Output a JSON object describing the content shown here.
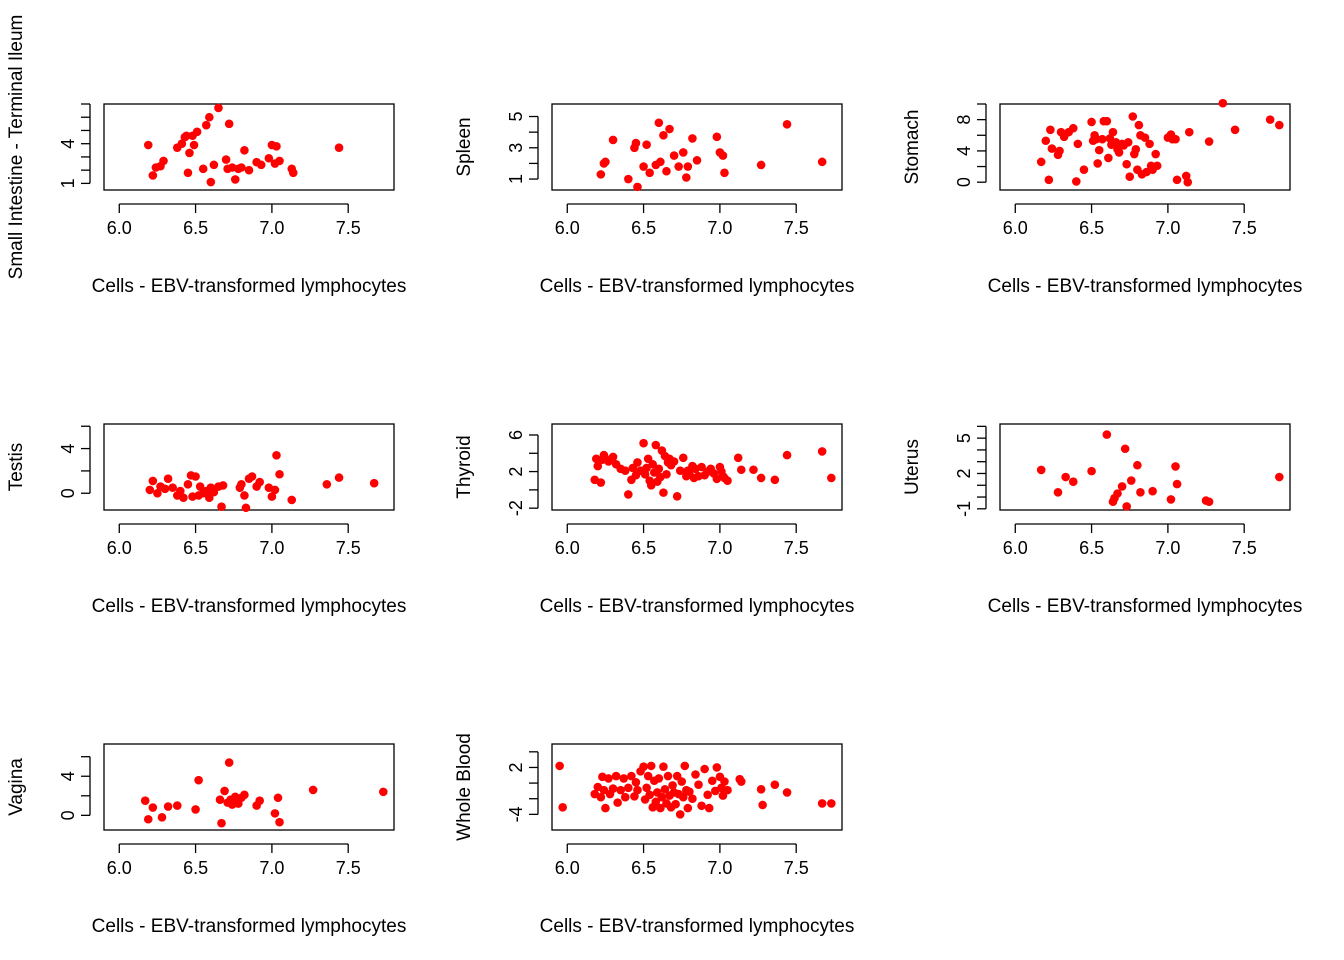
{
  "colors": {
    "points": "#ff0000",
    "axis": "#000000",
    "background": "#ffffff"
  },
  "chart_data": [
    {
      "type": "scatter",
      "xlabel": "Cells - EBV-transformed lymphocytes",
      "ylabel": "Small Intestine - Terminal Ileum",
      "xlim": [
        5.9,
        7.8
      ],
      "ylim": [
        0.5,
        7.0
      ],
      "xticks": [
        6.0,
        6.5,
        7.0,
        7.5
      ],
      "xtick_labels": [
        "6.0",
        "6.5",
        "7.0",
        "7.5"
      ],
      "yticks": [
        1,
        2,
        3,
        4,
        5,
        6,
        7
      ],
      "ytick_labels": [
        "1",
        "",
        "",
        "4",
        "",
        "",
        ""
      ],
      "x": [
        6.19,
        6.22,
        6.24,
        6.27,
        6.29,
        6.38,
        6.41,
        6.43,
        6.44,
        6.45,
        6.46,
        6.48,
        6.49,
        6.51,
        6.55,
        6.57,
        6.59,
        6.6,
        6.62,
        6.65,
        6.7,
        6.71,
        6.72,
        6.74,
        6.76,
        6.78,
        6.8,
        6.82,
        6.85,
        6.9,
        6.93,
        6.98,
        7.0,
        7.02,
        7.03,
        7.05,
        7.13,
        7.14,
        7.44
      ],
      "y": [
        3.9,
        1.6,
        2.2,
        2.3,
        2.7,
        3.7,
        4.0,
        4.5,
        4.6,
        1.8,
        3.3,
        4.6,
        3.9,
        4.9,
        2.1,
        5.4,
        6.0,
        1.1,
        2.4,
        6.7,
        2.8,
        2.1,
        5.5,
        2.2,
        1.3,
        2.1,
        2.2,
        3.5,
        2.0,
        2.6,
        2.4,
        2.9,
        3.9,
        2.5,
        3.8,
        2.7,
        2.1,
        1.8,
        3.7
      ]
    },
    {
      "type": "scatter",
      "xlabel": "Cells - EBV-transformed lymphocytes",
      "ylabel": "Spleen",
      "xlim": [
        5.9,
        7.8
      ],
      "ylim": [
        0.3,
        5.8
      ],
      "xticks": [
        6.0,
        6.5,
        7.0,
        7.5
      ],
      "xtick_labels": [
        "6.0",
        "6.5",
        "7.0",
        "7.5"
      ],
      "yticks": [
        1,
        2,
        3,
        4,
        5
      ],
      "ytick_labels": [
        "1",
        "",
        "3",
        "",
        "5"
      ],
      "x": [
        6.22,
        6.24,
        6.25,
        6.3,
        6.4,
        6.44,
        6.45,
        6.46,
        6.5,
        6.52,
        6.54,
        6.58,
        6.6,
        6.61,
        6.63,
        6.65,
        6.67,
        6.7,
        6.73,
        6.76,
        6.78,
        6.79,
        6.82,
        6.85,
        6.98,
        7.0,
        7.02,
        7.03,
        7.27,
        7.44,
        7.67
      ],
      "y": [
        1.3,
        2.0,
        2.1,
        3.5,
        1.0,
        3.0,
        3.3,
        0.5,
        1.8,
        3.2,
        1.4,
        1.9,
        4.6,
        2.1,
        3.8,
        1.5,
        4.2,
        2.5,
        1.8,
        2.7,
        1.1,
        1.8,
        3.6,
        2.2,
        3.7,
        2.7,
        2.5,
        1.4,
        1.9,
        4.5,
        2.1
      ]
    },
    {
      "type": "scatter",
      "xlabel": "Cells - EBV-transformed lymphocytes",
      "ylabel": "Stomach",
      "xlim": [
        5.9,
        7.8
      ],
      "ylim": [
        -1.0,
        10.0
      ],
      "xticks": [
        6.0,
        6.5,
        7.0,
        7.5
      ],
      "xtick_labels": [
        "6.0",
        "6.5",
        "7.0",
        "7.5"
      ],
      "yticks": [
        0,
        2,
        4,
        6,
        8,
        10
      ],
      "ytick_labels": [
        "0",
        "",
        "4",
        "",
        "8",
        ""
      ],
      "x": [
        6.17,
        6.2,
        6.22,
        6.23,
        6.24,
        6.28,
        6.29,
        6.3,
        6.32,
        6.35,
        6.38,
        6.4,
        6.41,
        6.45,
        6.5,
        6.51,
        6.52,
        6.53,
        6.54,
        6.55,
        6.57,
        6.58,
        6.6,
        6.61,
        6.62,
        6.63,
        6.64,
        6.66,
        6.67,
        6.68,
        6.7,
        6.71,
        6.73,
        6.74,
        6.75,
        6.77,
        6.78,
        6.79,
        6.8,
        6.81,
        6.82,
        6.83,
        6.85,
        6.86,
        6.88,
        6.89,
        6.9,
        6.92,
        6.93,
        7.0,
        7.02,
        7.03,
        7.05,
        7.06,
        7.12,
        7.13,
        7.14,
        7.27,
        7.36,
        7.44,
        7.67,
        7.73
      ],
      "y": [
        2.6,
        5.3,
        0.3,
        6.7,
        4.3,
        3.5,
        4.0,
        6.4,
        5.8,
        6.4,
        6.9,
        0.1,
        4.9,
        1.6,
        7.7,
        5.3,
        6.0,
        5.5,
        2.4,
        4.1,
        5.5,
        7.8,
        7.8,
        3.1,
        5.6,
        4.8,
        6.4,
        5.1,
        4.2,
        3.8,
        4.9,
        4.7,
        2.3,
        5.1,
        0.7,
        8.4,
        3.6,
        4.2,
        1.6,
        7.3,
        6.0,
        1.0,
        5.7,
        1.3,
        4.9,
        2.1,
        1.6,
        3.6,
        2.1,
        5.7,
        6.1,
        5.5,
        5.5,
        0.3,
        0.8,
        0.0,
        6.4,
        5.2,
        10.1,
        6.7,
        8.0,
        7.3
      ]
    },
    {
      "type": "scatter",
      "xlabel": "Cells - EBV-transformed lymphocytes",
      "ylabel": "Testis",
      "xlim": [
        5.9,
        7.8
      ],
      "ylim": [
        -1.5,
        6.2
      ],
      "xticks": [
        6.0,
        6.5,
        7.0,
        7.5
      ],
      "xtick_labels": [
        "6.0",
        "6.5",
        "7.0",
        "7.5"
      ],
      "yticks": [
        0,
        2,
        4,
        6
      ],
      "ytick_labels": [
        "0",
        "",
        "4",
        ""
      ],
      "x": [
        6.2,
        6.22,
        6.25,
        6.27,
        6.3,
        6.32,
        6.35,
        6.38,
        6.4,
        6.42,
        6.45,
        6.47,
        6.48,
        6.5,
        6.52,
        6.53,
        6.55,
        6.57,
        6.59,
        6.6,
        6.62,
        6.65,
        6.67,
        6.68,
        6.79,
        6.8,
        6.82,
        6.83,
        6.85,
        6.87,
        6.9,
        6.92,
        6.98,
        7.0,
        7.02,
        7.03,
        7.05,
        7.13,
        7.36,
        7.44,
        7.67
      ],
      "y": [
        0.3,
        1.1,
        0.0,
        0.6,
        0.4,
        1.3,
        0.5,
        -0.2,
        0.2,
        -0.4,
        0.8,
        1.6,
        -0.3,
        1.5,
        -0.2,
        0.6,
        0.0,
        0.2,
        -0.4,
        0.5,
        0.1,
        0.6,
        -1.2,
        0.7,
        0.5,
        0.8,
        -0.2,
        -1.3,
        1.3,
        1.5,
        0.6,
        1.0,
        0.5,
        -0.3,
        0.3,
        3.4,
        1.7,
        -0.6,
        0.8,
        1.4,
        0.9
      ]
    },
    {
      "type": "scatter",
      "xlabel": "Cells - EBV-transformed lymphocytes",
      "ylabel": "Thyroid",
      "xlim": [
        5.9,
        7.8
      ],
      "ylim": [
        -2.2,
        7.2
      ],
      "xticks": [
        6.0,
        6.5,
        7.0,
        7.5
      ],
      "xtick_labels": [
        "6.0",
        "6.5",
        "7.0",
        "7.5"
      ],
      "yticks": [
        -2,
        0,
        2,
        4,
        6
      ],
      "ytick_labels": [
        "-2",
        "",
        "2",
        "",
        "6"
      ],
      "x": [
        6.18,
        6.19,
        6.2,
        6.22,
        6.23,
        6.24,
        6.25,
        6.27,
        6.3,
        6.32,
        6.35,
        6.38,
        6.4,
        6.42,
        6.43,
        6.45,
        6.46,
        6.48,
        6.5,
        6.51,
        6.52,
        6.53,
        6.54,
        6.55,
        6.56,
        6.57,
        6.58,
        6.59,
        6.6,
        6.61,
        6.62,
        6.63,
        6.64,
        6.65,
        6.66,
        6.67,
        6.68,
        6.7,
        6.72,
        6.74,
        6.76,
        6.78,
        6.79,
        6.8,
        6.82,
        6.83,
        6.84,
        6.86,
        6.88,
        6.9,
        6.92,
        6.94,
        6.96,
        6.98,
        7.0,
        7.01,
        7.02,
        7.03,
        7.05,
        7.12,
        7.14,
        7.22,
        7.27,
        7.36,
        7.44,
        7.67,
        7.73
      ],
      "y": [
        1.1,
        3.4,
        2.6,
        0.8,
        3.3,
        3.8,
        3.4,
        3.1,
        3.6,
        2.8,
        2.3,
        2.1,
        -0.5,
        1.1,
        2.4,
        1.6,
        3.0,
        2.1,
        5.1,
        1.7,
        2.4,
        3.4,
        1.0,
        0.5,
        2.8,
        1.9,
        4.9,
        0.9,
        2.3,
        1.4,
        4.3,
        -0.3,
        3.7,
        1.7,
        3.0,
        3.4,
        2.7,
        3.1,
        -0.7,
        2.1,
        3.5,
        1.5,
        2.1,
        1.7,
        2.6,
        1.3,
        2.3,
        1.5,
        2.5,
        1.6,
        2.0,
        2.3,
        1.8,
        1.2,
        2.5,
        2.0,
        1.5,
        1.3,
        1.0,
        3.5,
        2.2,
        2.2,
        1.3,
        1.1,
        3.8,
        4.2,
        1.3
      ]
    },
    {
      "type": "scatter",
      "xlabel": "Cells - EBV-transformed lymphocytes",
      "ylabel": "Uterus",
      "xlim": [
        5.9,
        7.8
      ],
      "ylim": [
        -1.1,
        6.2
      ],
      "xticks": [
        6.0,
        6.5,
        7.0,
        7.5
      ],
      "xtick_labels": [
        "6.0",
        "6.5",
        "7.0",
        "7.5"
      ],
      "yticks": [
        -1,
        0,
        1,
        2,
        3,
        4,
        5,
        6
      ],
      "ytick_labels": [
        "-1",
        "",
        "",
        "2",
        "",
        "",
        "5",
        ""
      ],
      "x": [
        6.17,
        6.28,
        6.33,
        6.38,
        6.5,
        6.6,
        6.64,
        6.65,
        6.67,
        6.7,
        6.72,
        6.73,
        6.76,
        6.8,
        6.82,
        6.9,
        7.02,
        7.05,
        7.06,
        7.25,
        7.27,
        7.73
      ],
      "y": [
        2.3,
        0.4,
        1.7,
        1.3,
        2.2,
        5.3,
        -0.4,
        -0.1,
        0.3,
        0.9,
        4.1,
        -0.8,
        1.4,
        2.7,
        0.4,
        0.5,
        -0.2,
        2.6,
        1.1,
        -0.3,
        -0.4,
        1.7
      ]
    },
    {
      "type": "scatter",
      "xlabel": "Cells - EBV-transformed lymphocytes",
      "ylabel": "Vagina",
      "xlim": [
        5.9,
        7.8
      ],
      "ylim": [
        -1.5,
        7.3
      ],
      "xticks": [
        6.0,
        6.5,
        7.0,
        7.5
      ],
      "xtick_labels": [
        "6.0",
        "6.5",
        "7.0",
        "7.5"
      ],
      "yticks": [
        0,
        2,
        4,
        6
      ],
      "ytick_labels": [
        "0",
        "",
        "4",
        ""
      ],
      "x": [
        6.17,
        6.19,
        6.22,
        6.28,
        6.32,
        6.38,
        6.5,
        6.52,
        6.66,
        6.67,
        6.69,
        6.71,
        6.72,
        6.73,
        6.74,
        6.76,
        6.78,
        6.8,
        6.82,
        6.9,
        6.92,
        7.02,
        7.04,
        7.05,
        7.27,
        7.73
      ],
      "y": [
        1.5,
        -0.4,
        0.8,
        -0.2,
        0.9,
        1.0,
        0.6,
        3.6,
        1.6,
        -0.8,
        2.5,
        1.3,
        5.4,
        1.6,
        1.1,
        1.9,
        1.2,
        1.8,
        2.1,
        1.0,
        1.5,
        0.2,
        1.8,
        -0.7,
        2.6,
        2.4
      ]
    },
    {
      "type": "scatter",
      "xlabel": "Cells - EBV-transformed lymphocytes",
      "ylabel": "Whole Blood",
      "xlim": [
        5.9,
        7.8
      ],
      "ylim": [
        -6.0,
        5.0
      ],
      "xticks": [
        6.0,
        6.5,
        7.0,
        7.5
      ],
      "xtick_labels": [
        "6.0",
        "6.5",
        "7.0",
        "7.5"
      ],
      "yticks": [
        -4,
        -2,
        0,
        2,
        4
      ],
      "ytick_labels": [
        "-4",
        "",
        "",
        "2",
        ""
      ],
      "x": [
        5.95,
        5.97,
        6.18,
        6.2,
        6.22,
        6.23,
        6.24,
        6.25,
        6.27,
        6.28,
        6.3,
        6.32,
        6.33,
        6.35,
        6.37,
        6.38,
        6.4,
        6.42,
        6.44,
        6.45,
        6.46,
        6.48,
        6.5,
        6.51,
        6.52,
        6.53,
        6.54,
        6.55,
        6.56,
        6.57,
        6.58,
        6.59,
        6.6,
        6.61,
        6.62,
        6.63,
        6.64,
        6.65,
        6.66,
        6.67,
        6.68,
        6.69,
        6.7,
        6.71,
        6.72,
        6.73,
        6.74,
        6.75,
        6.76,
        6.77,
        6.78,
        6.79,
        6.8,
        6.82,
        6.84,
        6.86,
        6.88,
        6.9,
        6.92,
        6.93,
        6.95,
        6.97,
        6.98,
        7.0,
        7.01,
        7.02,
        7.03,
        7.05,
        7.13,
        7.14,
        7.27,
        7.28,
        7.36,
        7.44,
        7.67,
        7.73
      ],
      "y": [
        2.2,
        -3.1,
        -1.4,
        -0.5,
        -1.8,
        0.8,
        -0.9,
        -3.2,
        0.6,
        -1.4,
        -0.7,
        0.9,
        -2.5,
        -0.9,
        0.6,
        -1.8,
        -0.6,
        0.9,
        -1.7,
        0.1,
        -0.9,
        1.5,
        2.1,
        -2.1,
        -0.6,
        0.9,
        -1.5,
        2.2,
        -3.1,
        0.3,
        -2.4,
        -1.2,
        0.6,
        -3.2,
        -1.8,
        2.1,
        -0.8,
        -2.6,
        0.9,
        -1.6,
        -3.1,
        -0.3,
        -1.2,
        -2.7,
        0.9,
        -1.4,
        -4.0,
        0.2,
        -1.8,
        2.2,
        -0.9,
        -3.2,
        -1.1,
        -2.0,
        1.1,
        -0.2,
        -2.9,
        1.8,
        -1.5,
        -3.2,
        0.3,
        -1.0,
        2.0,
        0.8,
        -0.6,
        -1.6,
        0.2,
        -0.9,
        0.5,
        0.2,
        -0.8,
        -2.8,
        -0.2,
        -1.2,
        -2.6,
        -2.6
      ]
    }
  ]
}
